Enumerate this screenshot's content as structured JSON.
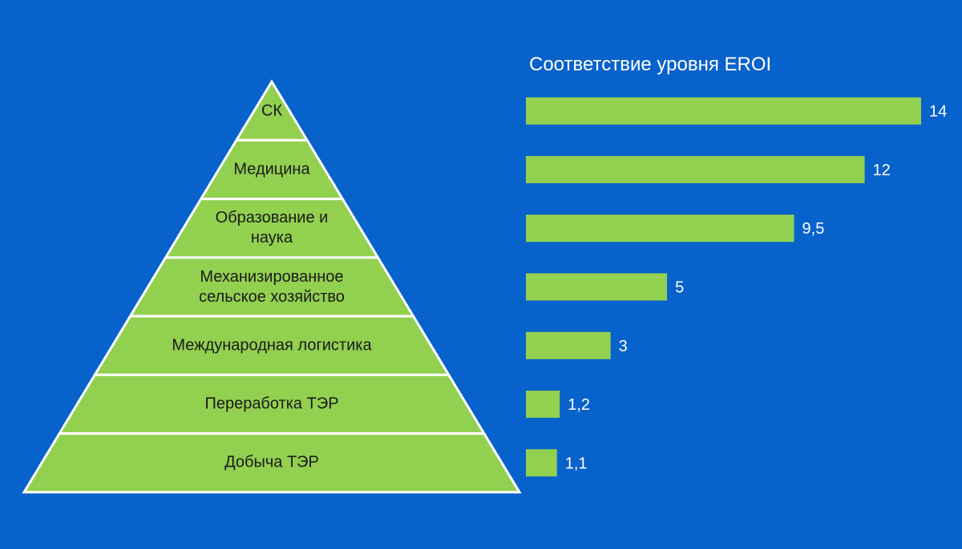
{
  "chart_data": {
    "type": "pyramid-bar",
    "title": "Соответствие уровня EROI",
    "categories": [
      "СК",
      "Медицина",
      "Образование и наука",
      "Механизированное сельское хозяйство",
      "Международная логистика",
      "Переработка ТЭР",
      "Добыча ТЭР"
    ],
    "values": [
      14,
      12,
      9.5,
      5,
      3,
      1.2,
      1.1
    ],
    "value_labels": [
      "14",
      "12",
      "9,5",
      "5",
      "3",
      "1,2",
      "1,1"
    ],
    "color": "#92d050"
  }
}
